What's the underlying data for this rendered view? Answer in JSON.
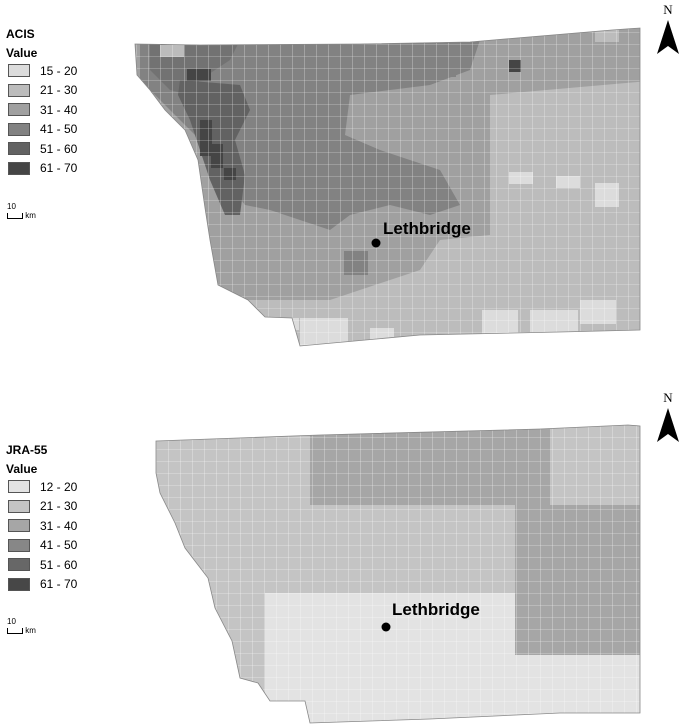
{
  "maps": [
    {
      "legend_title": "ACIS",
      "legend_subtitle": "Value",
      "classes": [
        {
          "label": "15 - 20",
          "color": "#dcdcdc"
        },
        {
          "label": "21 - 30",
          "color": "#bcbcbc"
        },
        {
          "label": "31 - 40",
          "color": "#a0a0a0"
        },
        {
          "label": "41 - 50",
          "color": "#828282"
        },
        {
          "label": "51 - 60",
          "color": "#626262"
        },
        {
          "label": "61 - 70",
          "color": "#454545"
        }
      ],
      "scale_value": "10",
      "scale_unit": "km",
      "north_label": "N",
      "city": "Lethbridge"
    },
    {
      "legend_title": "JRA-55",
      "legend_subtitle": "Value",
      "classes": [
        {
          "label": "12 - 20",
          "color": "#e3e3e3"
        },
        {
          "label": "21 - 30",
          "color": "#c4c4c4"
        },
        {
          "label": "31 - 40",
          "color": "#a6a6a6"
        },
        {
          "label": "41 - 50",
          "color": "#878787"
        },
        {
          "label": "51 - 60",
          "color": "#676767"
        },
        {
          "label": "61 - 70",
          "color": "#474747"
        }
      ],
      "scale_value": "10",
      "scale_unit": "km",
      "north_label": "N",
      "city": "Lethbridge"
    }
  ]
}
